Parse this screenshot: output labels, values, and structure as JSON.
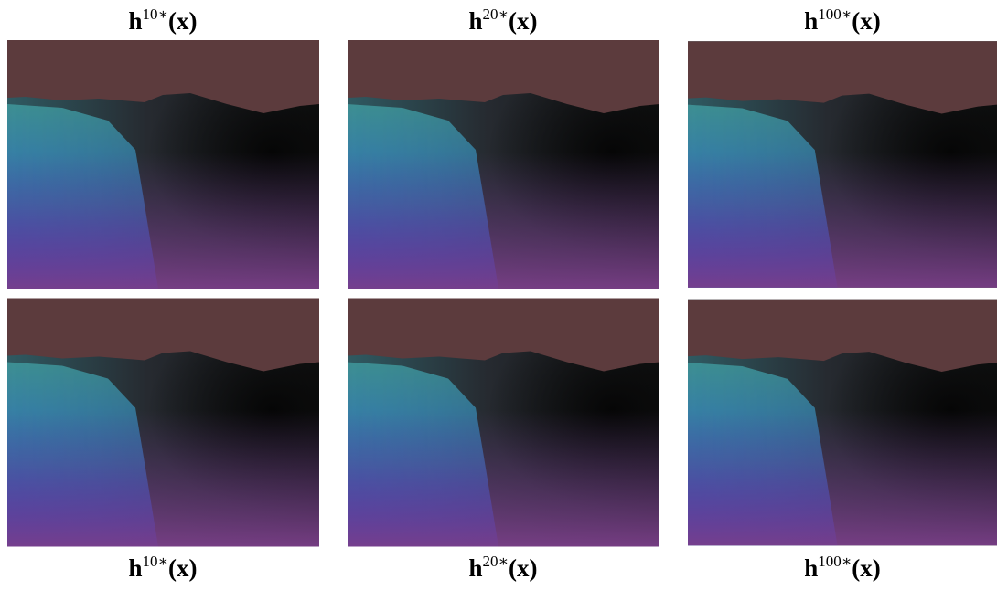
{
  "top_labels": [
    {
      "base": "h",
      "sup": "10∗",
      "arg": "(x)"
    },
    {
      "base": "h",
      "sup": "20∗",
      "arg": "(x)"
    },
    {
      "base": "h",
      "sup": "100∗",
      "arg": "(x)"
    }
  ],
  "bottom_labels": [
    {
      "base": "h",
      "sup": "10∗",
      "arg": "(x)"
    },
    {
      "base": "h",
      "sup": "20∗",
      "arg": "(x)"
    },
    {
      "base": "h",
      "sup": "100∗",
      "arg": "(x)"
    }
  ]
}
